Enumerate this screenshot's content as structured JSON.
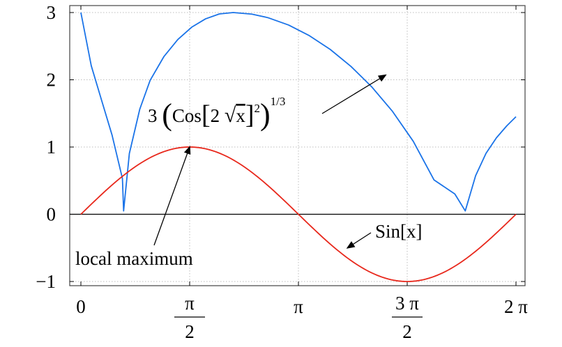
{
  "chart_data": {
    "type": "line",
    "title": "",
    "xlabel": "",
    "ylabel": "",
    "xlim": [
      0,
      6.2832
    ],
    "ylim": [
      -1,
      3
    ],
    "grid": true,
    "x_ticks": [
      {
        "value": 0,
        "label": "0"
      },
      {
        "value": 1.5708,
        "label_num": "π",
        "label_den": "2"
      },
      {
        "value": 3.1416,
        "label": "π"
      },
      {
        "value": 4.7124,
        "label_num": "3 π",
        "label_den": "2"
      },
      {
        "value": 6.2832,
        "label": "2 π"
      }
    ],
    "y_ticks": [
      {
        "value": -1,
        "label": "−1"
      },
      {
        "value": 0,
        "label": "0"
      },
      {
        "value": 1,
        "label": "1"
      },
      {
        "value": 2,
        "label": "2"
      },
      {
        "value": 3,
        "label": "3"
      }
    ],
    "series": [
      {
        "color": "#1a73e8",
        "x": [
          0,
          0.15,
          0.3,
          0.45,
          0.6,
          0.617,
          0.7,
          0.85,
          1.0,
          1.2,
          1.4,
          1.6,
          1.8,
          2.0,
          2.2,
          2.467,
          2.7,
          3.0,
          3.3,
          3.6,
          3.9,
          4.2,
          4.5,
          4.8,
          5.1,
          5.4,
          5.551,
          5.7,
          5.85,
          6.0,
          6.15,
          6.283
        ],
        "y": [
          3.0,
          2.208,
          1.692,
          1.178,
          0.531,
          0.05,
          0.904,
          1.561,
          1.992,
          2.347,
          2.599,
          2.782,
          2.906,
          2.979,
          3.0,
          2.977,
          2.924,
          2.814,
          2.656,
          2.452,
          2.199,
          1.895,
          1.53,
          1.085,
          0.51,
          0.302,
          0.05,
          0.572,
          0.906,
          1.136,
          1.315,
          1.451
        ]
      },
      {
        "color": "#e8281c",
        "function": "sin"
      }
    ],
    "annotations": [
      {
        "name": "cos-formula",
        "text": "3 (Cos[2 √x]²)^1/3",
        "target": [
          4.4,
          2.07
        ]
      },
      {
        "name": "local-maximum",
        "text": "local maximum",
        "target": [
          1.5708,
          1.0
        ]
      },
      {
        "name": "sin-label",
        "text": "Sin[x]",
        "target": [
          3.85,
          -0.5
        ]
      }
    ]
  }
}
